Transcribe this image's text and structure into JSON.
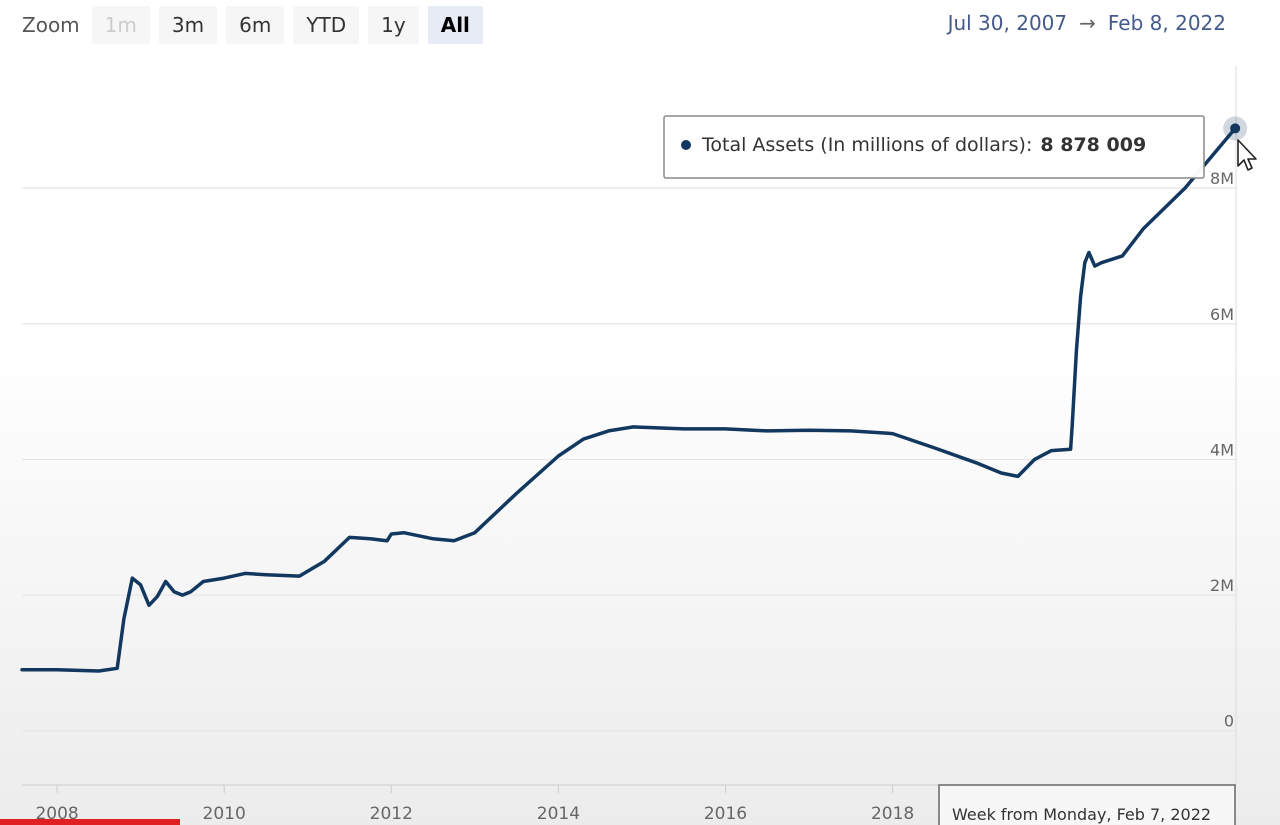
{
  "zoom": {
    "label": "Zoom",
    "buttons": [
      "1m",
      "3m",
      "6m",
      "YTD",
      "1y",
      "All"
    ],
    "disabled": "1m",
    "active": "All"
  },
  "range": {
    "from": "Jul 30, 2007",
    "arrow": "→",
    "to": "Feb 8, 2022"
  },
  "tooltip": {
    "series_label": "Total Assets (In millions of dollars):",
    "value": "8 878 009",
    "x_label": "Week from Monday, Feb 7, 2022"
  },
  "colors": {
    "line": "#12385f",
    "grid": "#e6e6e6",
    "axis_text": "#666666",
    "range_text": "#445a8c"
  },
  "chart_data": {
    "type": "line",
    "title": "",
    "xlabel": "",
    "ylabel": "",
    "x_ticks": [
      "2008",
      "2010",
      "2012",
      "2014",
      "2016",
      "2018"
    ],
    "y_ticks": [
      "0",
      "2M",
      "4M",
      "6M",
      "8M"
    ],
    "xlim": [
      2007.58,
      2022.11
    ],
    "ylim": [
      -0.8,
      9.8
    ],
    "y_unit": "millions of millions (M)",
    "grid": true,
    "legend": "none",
    "series": [
      {
        "name": "Total Assets (In millions of dollars)",
        "x": [
          2007.58,
          2008.0,
          2008.5,
          2008.72,
          2008.8,
          2008.9,
          2009.0,
          2009.1,
          2009.2,
          2009.3,
          2009.4,
          2009.5,
          2009.6,
          2009.75,
          2010.0,
          2010.25,
          2010.5,
          2010.9,
          2011.2,
          2011.5,
          2011.75,
          2011.95,
          2012.0,
          2012.15,
          2012.5,
          2012.75,
          2013.0,
          2013.5,
          2014.0,
          2014.3,
          2014.6,
          2014.9,
          2015.5,
          2016.0,
          2016.5,
          2017.0,
          2017.5,
          2018.0,
          2018.5,
          2019.0,
          2019.3,
          2019.5,
          2019.7,
          2019.9,
          2020.13,
          2020.15,
          2020.2,
          2020.25,
          2020.3,
          2020.35,
          2020.42,
          2020.5,
          2020.75,
          2021.0,
          2021.5,
          2022.1
        ],
        "y": [
          0.9,
          0.9,
          0.88,
          0.92,
          1.65,
          2.25,
          2.15,
          1.85,
          1.98,
          2.2,
          2.05,
          2.0,
          2.05,
          2.2,
          2.25,
          2.32,
          2.3,
          2.28,
          2.5,
          2.85,
          2.83,
          2.8,
          2.9,
          2.92,
          2.83,
          2.8,
          2.92,
          3.5,
          4.05,
          4.3,
          4.42,
          4.48,
          4.45,
          4.45,
          4.42,
          4.43,
          4.42,
          4.38,
          4.17,
          3.95,
          3.8,
          3.75,
          4.0,
          4.13,
          4.15,
          4.5,
          5.6,
          6.4,
          6.9,
          7.05,
          6.85,
          6.9,
          7.0,
          7.4,
          8.0,
          8.88
        ]
      }
    ]
  }
}
